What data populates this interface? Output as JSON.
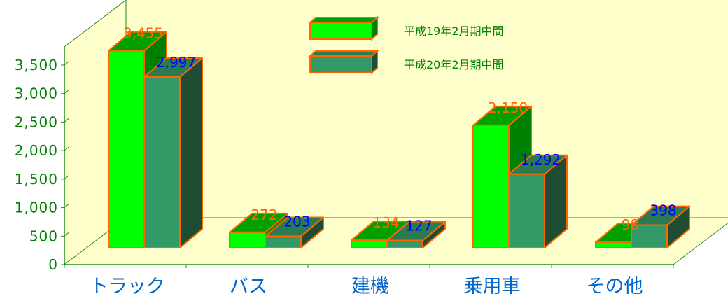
{
  "chart_data": {
    "type": "bar",
    "style": "3d-clustered",
    "categories": [
      "トラック",
      "バス",
      "建機",
      "乗用車",
      "その他"
    ],
    "series": [
      {
        "name": "平成19年2月期中間",
        "values": [
          3455,
          272,
          134,
          2150,
          98
        ],
        "labels": [
          "3,455",
          "272",
          "134",
          "2,150",
          "98"
        ]
      },
      {
        "name": "平成20年2月期中間",
        "values": [
          2997,
          203,
          127,
          1292,
          398
        ],
        "labels": [
          "2,997",
          "203",
          "127",
          "1,292",
          "398"
        ]
      }
    ],
    "y_ticks": [
      0,
      500,
      1000,
      1500,
      2000,
      2500,
      3000,
      3500
    ],
    "y_tick_labels": [
      "0",
      "500",
      "1,000",
      "1,500",
      "2,000",
      "2,500",
      "3,000",
      "3,500"
    ],
    "ylim": [
      0,
      3500
    ],
    "title": "",
    "xlabel": "",
    "ylabel": "",
    "legend_position": "top-center",
    "grid": false
  },
  "colors": {
    "wall": "#ffffcc",
    "floor": "#ffffcc",
    "axis": "#228b22",
    "bar_outline": "#ff6600",
    "series1_front": "#00ff00",
    "series1_side": "#008000",
    "series1_top": "#00a000",
    "series2_front": "#339966",
    "series2_side": "#1e4d33",
    "series2_top": "#2a7a52",
    "label1": "#ff6600",
    "label2": "#0000ff",
    "tick_text": "#008000",
    "category_text": "#0066cc",
    "legend_text": "#008000"
  }
}
